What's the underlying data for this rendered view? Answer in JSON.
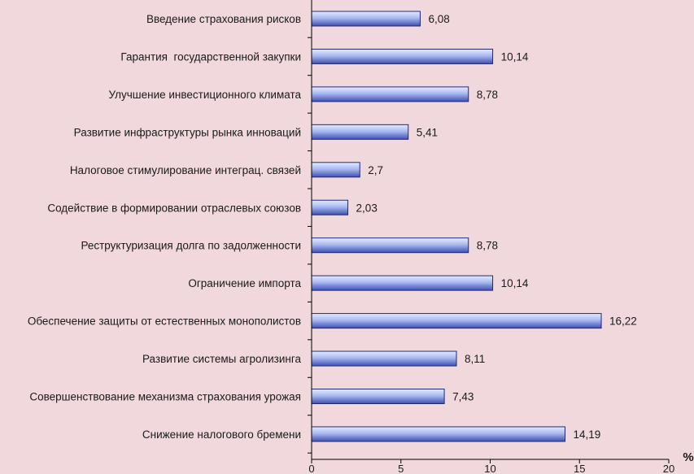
{
  "chart_data": {
    "type": "bar",
    "orientation": "horizontal",
    "categories": [
      "Введение страхования рисков",
      "Гарантия  государственной закупки",
      "Улучшение инвестиционного климата",
      "Развитие инфраструктуры рынка инноваций",
      "Налоговое стимулирование интеграц. связей",
      "Содействие в формировании отраслевых союзов",
      "Реструктуризация долга по задолженности",
      "Ограничение импорта",
      "Обеспечение защиты от естественных монополистов",
      "Развитие системы агролизинга",
      "Совершенствование механизма страхования урожая",
      "Снижение налогового бремени"
    ],
    "values": [
      6.08,
      10.14,
      8.78,
      5.41,
      2.7,
      2.03,
      8.78,
      10.14,
      16.22,
      8.11,
      7.43,
      14.19
    ],
    "value_labels": [
      "6,08",
      "10,14",
      "8,78",
      "5,41",
      "2,7",
      "2,03",
      "8,78",
      "10,14",
      "16,22",
      "8,11",
      "7,43",
      "14,19"
    ],
    "xlim": [
      0,
      20
    ],
    "xticks": [
      0,
      5,
      10,
      15,
      20
    ],
    "xtick_labels": [
      "0",
      "5",
      "10",
      "15",
      "20"
    ],
    "xlabel": "%",
    "title": "",
    "ylabel": "",
    "grid": false,
    "legend": "none",
    "colors": {
      "background": "#f0d8dc",
      "bar_fill_light": "#e4ecff",
      "bar_fill_dark": "#3e4fb3",
      "bar_stroke": "#1f2a7a",
      "axis": "#000000"
    }
  }
}
